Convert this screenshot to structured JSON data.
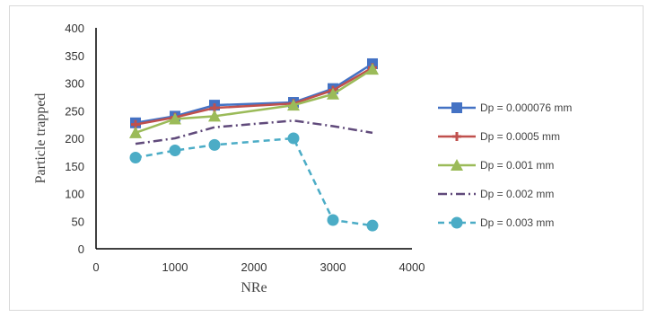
{
  "chart_data": {
    "type": "line",
    "title": "",
    "xlabel": "NRe",
    "ylabel": "Particle trapped",
    "xlim": [
      0,
      4000
    ],
    "ylim": [
      0,
      400
    ],
    "xticks": [
      0,
      1000,
      2000,
      3000,
      4000
    ],
    "yticks": [
      0,
      50,
      100,
      150,
      200,
      250,
      300,
      350,
      400
    ],
    "x": [
      500,
      1000,
      1500,
      2500,
      3000,
      3500
    ],
    "grid": false,
    "legend_position": "right",
    "series": [
      {
        "name": "Dp = 0.000076 mm",
        "values": [
          228,
          240,
          260,
          265,
          290,
          335
        ],
        "color": "#4472c4",
        "line_style": "solid",
        "marker": "square"
      },
      {
        "name": "Dp = 0.0005  mm",
        "values": [
          225,
          238,
          255,
          263,
          287,
          328
        ],
        "color": "#c0504d",
        "line_style": "solid",
        "marker": "plus"
      },
      {
        "name": "Dp = 0.001 mm",
        "values": [
          210,
          235,
          240,
          260,
          280,
          325
        ],
        "color": "#9bbb59",
        "line_style": "solid",
        "marker": "triangle"
      },
      {
        "name": "Dp = 0.002 mm",
        "values": [
          190,
          200,
          220,
          232,
          222,
          210
        ],
        "color": "#604a7b",
        "line_style": "dash-dot",
        "marker": "none"
      },
      {
        "name": "Dp = 0.003 mm",
        "values": [
          165,
          178,
          188,
          200,
          52,
          42
        ],
        "color": "#4bacc6",
        "line_style": "dashed",
        "marker": "circle"
      }
    ]
  }
}
